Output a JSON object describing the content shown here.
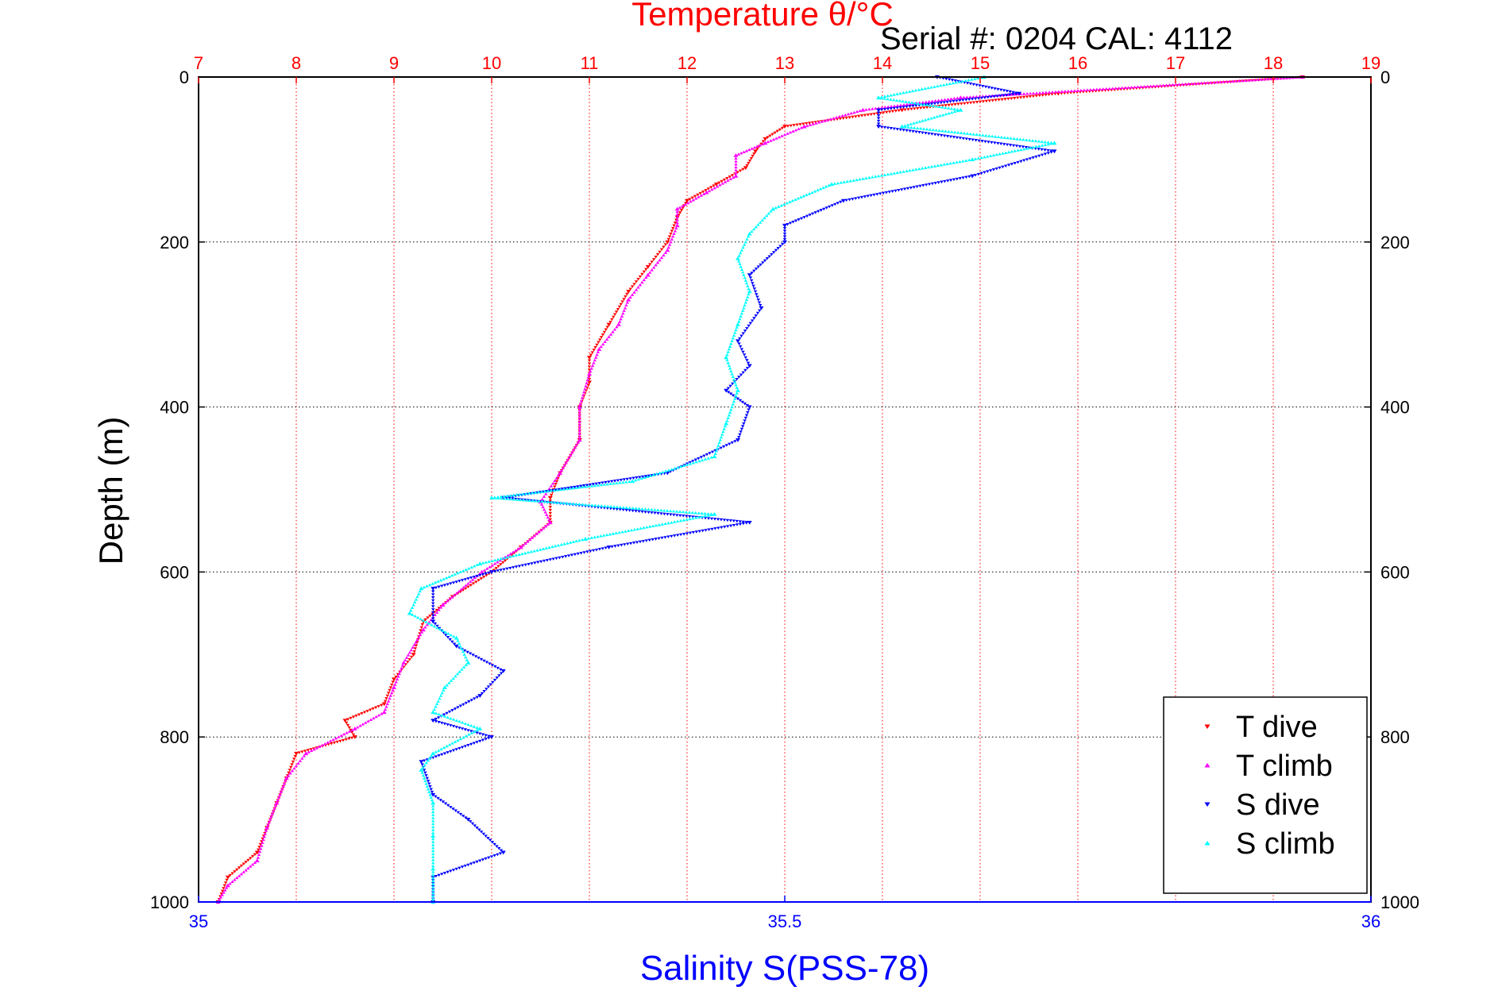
{
  "chart_data": {
    "type": "scatter",
    "title": "Temperature θ/°C",
    "subtitle": "Serial #: 0204  CAL: 4112",
    "ylabel": "Depth (m)",
    "xlabel": "Salinity S(PSS-78)",
    "ylim": [
      0,
      1000
    ],
    "y_reversed": true,
    "grid": true,
    "legend_placement": "bottom-right",
    "temperature_axis": {
      "position": "top",
      "range": [
        7,
        19
      ],
      "ticks": [
        "7",
        "8",
        "9",
        "10",
        "11",
        "12",
        "13",
        "14",
        "15",
        "16",
        "17",
        "18",
        "19"
      ],
      "color": "#ff0000"
    },
    "salinity_axis": {
      "position": "bottom",
      "range": [
        35,
        36
      ],
      "ticks": [
        "35",
        "35.5",
        "36"
      ],
      "color": "#0000ff"
    },
    "depth_ticks": [
      "0",
      "200",
      "400",
      "600",
      "800",
      "1000"
    ],
    "series": [
      {
        "name": "T dive",
        "axis": "temperature",
        "color": "#ff0000",
        "marker": "down-triangle",
        "depth": [
          0,
          20,
          40,
          60,
          75,
          90,
          110,
          130,
          150,
          170,
          200,
          230,
          260,
          300,
          340,
          370,
          400,
          440,
          480,
          510,
          540,
          570,
          600,
          630,
          660,
          700,
          730,
          760,
          780,
          800,
          820,
          850,
          880,
          910,
          940,
          970,
          1000
        ],
        "values": [
          18.3,
          15.8,
          14.2,
          13.0,
          12.8,
          12.7,
          12.6,
          12.3,
          12.0,
          11.9,
          11.8,
          11.6,
          11.4,
          11.2,
          11.0,
          11.0,
          10.9,
          10.9,
          10.7,
          10.6,
          10.6,
          10.3,
          10.0,
          9.6,
          9.3,
          9.2,
          9.0,
          8.9,
          8.5,
          8.6,
          8.0,
          7.9,
          7.8,
          7.7,
          7.6,
          7.3,
          7.2
        ]
      },
      {
        "name": "T climb",
        "axis": "temperature",
        "color": "#ff00ff",
        "marker": "up-triangle",
        "depth": [
          0,
          25,
          40,
          60,
          80,
          95,
          120,
          140,
          160,
          180,
          210,
          240,
          270,
          300,
          330,
          360,
          400,
          440,
          480,
          515,
          540,
          570,
          600,
          640,
          670,
          710,
          740,
          770,
          790,
          820,
          850,
          880,
          910,
          950,
          980,
          1000
        ],
        "values": [
          18.3,
          14.8,
          13.8,
          13.2,
          12.8,
          12.5,
          12.5,
          12.2,
          11.9,
          11.9,
          11.8,
          11.6,
          11.4,
          11.3,
          11.1,
          11.0,
          10.9,
          10.9,
          10.7,
          10.5,
          10.6,
          10.3,
          9.9,
          9.5,
          9.3,
          9.1,
          9.0,
          8.9,
          8.6,
          8.1,
          7.9,
          7.8,
          7.7,
          7.6,
          7.3,
          7.2
        ]
      },
      {
        "name": "S dive",
        "axis": "salinity",
        "color": "#0000ff",
        "marker": "down-triangle",
        "depth": [
          0,
          20,
          40,
          60,
          90,
          120,
          150,
          180,
          200,
          240,
          280,
          320,
          350,
          380,
          400,
          440,
          480,
          510,
          540,
          570,
          600,
          620,
          660,
          690,
          720,
          750,
          780,
          800,
          830,
          870,
          900,
          940,
          970,
          1000
        ],
        "values": [
          35.63,
          35.7,
          35.58,
          35.58,
          35.73,
          35.66,
          35.55,
          35.5,
          35.5,
          35.47,
          35.48,
          35.46,
          35.47,
          35.45,
          35.47,
          35.46,
          35.4,
          35.26,
          35.47,
          35.35,
          35.25,
          35.2,
          35.2,
          35.22,
          35.26,
          35.24,
          35.2,
          35.25,
          35.19,
          35.2,
          35.23,
          35.26,
          35.2,
          35.2
        ]
      },
      {
        "name": "S climb",
        "axis": "salinity",
        "color": "#00ffff",
        "marker": "up-triangle",
        "depth": [
          0,
          25,
          40,
          60,
          80,
          100,
          130,
          160,
          190,
          220,
          260,
          300,
          340,
          380,
          420,
          460,
          490,
          510,
          530,
          560,
          590,
          620,
          650,
          680,
          710,
          740,
          770,
          790,
          820,
          840,
          880,
          920,
          960,
          1000
        ],
        "values": [
          35.67,
          35.58,
          35.65,
          35.6,
          35.73,
          35.66,
          35.54,
          35.49,
          35.47,
          35.46,
          35.47,
          35.46,
          35.45,
          35.46,
          35.45,
          35.44,
          35.37,
          35.25,
          35.44,
          35.33,
          35.24,
          35.19,
          35.18,
          35.22,
          35.23,
          35.21,
          35.2,
          35.24,
          35.2,
          35.19,
          35.2,
          35.2,
          35.2,
          35.2
        ]
      }
    ]
  }
}
